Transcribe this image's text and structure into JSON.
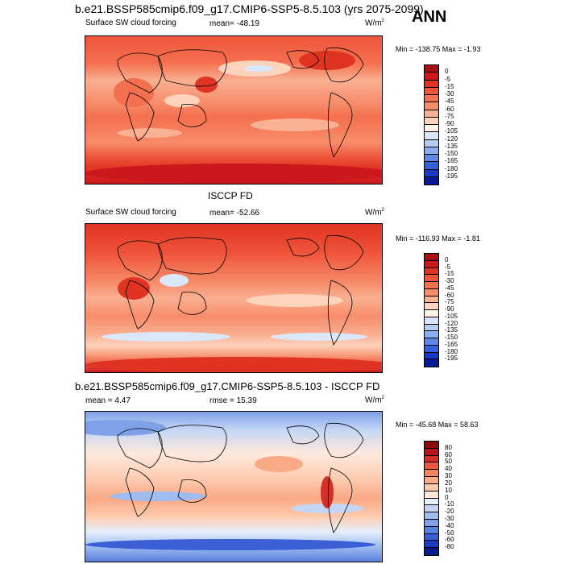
{
  "season": "ANN",
  "units_base": "W/m",
  "units_exp": "2",
  "panel1": {
    "case_title": "b.e21.BSSP585cmip6.f09_g17.CMIP6-SSP5-8.5.103 (yrs 2075-2099)",
    "variable": "Surface SW cloud forcing",
    "mean": "mean= -48.19",
    "minmax": "Min = -138.75 Max =  -1.93"
  },
  "panel2": {
    "obs_title": "ISCCP FD",
    "variable": "Surface SW cloud forcing",
    "mean": "mean= -52.66",
    "minmax": "Min = -116.93 Max =  -1.81"
  },
  "panel3": {
    "diff_title": "b.e21.BSSP585cmip6.f09_g17.CMIP6-SSP5-8.5.103 - ISCCP FD",
    "mean": "mean =   4.47",
    "rmse": "rmse =  15.39",
    "minmax": "Min = -45.68 Max =  58.63"
  },
  "colorbar_abs": {
    "labels": [
      "0",
      "-5",
      "-15",
      "-30",
      "-45",
      "-60",
      "-75",
      "-90",
      "-105",
      "-120",
      "-135",
      "-150",
      "-165",
      "-180",
      "-195"
    ],
    "colors": [
      "#a50f15",
      "#cb181d",
      "#e03423",
      "#ef553a",
      "#f4704e",
      "#f78d6b",
      "#fab092",
      "#fcd3bb",
      "#fff2e8",
      "#dbe8fb",
      "#b5cdf5",
      "#8cadef",
      "#5f87e8",
      "#3560de",
      "#1a38c8",
      "#0a1a96"
    ]
  },
  "colorbar_diff": {
    "labels": [
      "80",
      "60",
      "50",
      "40",
      "30",
      "20",
      "10",
      "0",
      "-10",
      "-20",
      "-30",
      "-40",
      "-50",
      "-60",
      "-80"
    ],
    "colors": [
      "#8c0a0a",
      "#b5161a",
      "#d62f27",
      "#ea5a3f",
      "#f5845f",
      "#faa985",
      "#fdcbb0",
      "#ffe9dd",
      "#e6effc",
      "#c4d6f5",
      "#9fbcee",
      "#7ea1e8",
      "#5a80e0",
      "#3a5fd6",
      "#1f3cc0",
      "#0a1b8e"
    ]
  }
}
